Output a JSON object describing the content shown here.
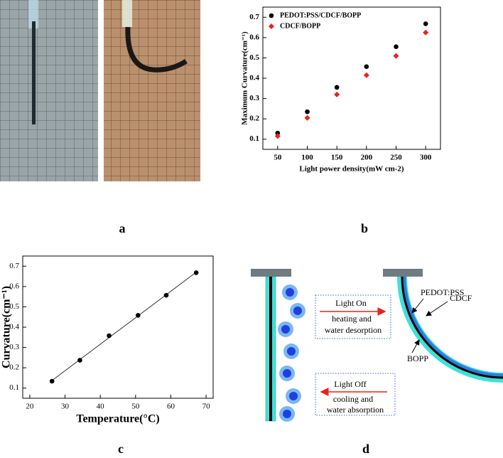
{
  "chart_data": [
    {
      "type": "scatter",
      "x_label": "Light power density(mW cm-2)",
      "y_label": "Maximum Curvature(cm⁻¹)",
      "x": [
        50,
        100,
        150,
        200,
        250,
        300
      ],
      "series": [
        {
          "name": "PEDOT:PSS/CDCF/BOPP",
          "color": "#000000",
          "marker": "circle",
          "values": [
            0.13,
            0.235,
            0.355,
            0.457,
            0.555,
            0.668
          ]
        },
        {
          "name": "CDCF/BOPP",
          "color": "#e8221c",
          "marker": "diamond",
          "values": [
            0.115,
            0.205,
            0.32,
            0.415,
            0.51,
            0.625
          ]
        }
      ],
      "xlim": [
        25,
        325
      ],
      "xticks": [
        50,
        100,
        150,
        200,
        250,
        300
      ],
      "ylim": [
        0.05,
        0.75
      ],
      "yticks": [
        0.1,
        0.2,
        0.3,
        0.4,
        0.5,
        0.6,
        0.7
      ],
      "legend": "upper left"
    },
    {
      "type": "scatter",
      "x_label": "Temperature(°C)",
      "y_label": "Curvature(cm⁻¹)",
      "x": [
        26.3,
        34.2,
        42.5,
        50.7,
        58.7,
        67.2
      ],
      "series": [
        {
          "color": "#000000",
          "marker": "circle",
          "values": [
            0.134,
            0.237,
            0.358,
            0.458,
            0.557,
            0.668
          ]
        }
      ],
      "xlim": [
        18,
        72
      ],
      "xticks": [
        20,
        30,
        40,
        50,
        60,
        70
      ],
      "ylim": [
        0.05,
        0.75
      ],
      "yticks": [
        0.1,
        0.2,
        0.3,
        0.4,
        0.5,
        0.6,
        0.7
      ],
      "fit_line": true
    }
  ],
  "panels": [
    "a",
    "b",
    "c",
    "d"
  ],
  "diagram": {
    "box_on": [
      "Light On",
      "heating and",
      "water desorption"
    ],
    "box_off": [
      "Light Off",
      "cooling and",
      "water absorption"
    ],
    "layers": [
      "PEDOT:PSS",
      "CDCF",
      "BOPP"
    ]
  }
}
